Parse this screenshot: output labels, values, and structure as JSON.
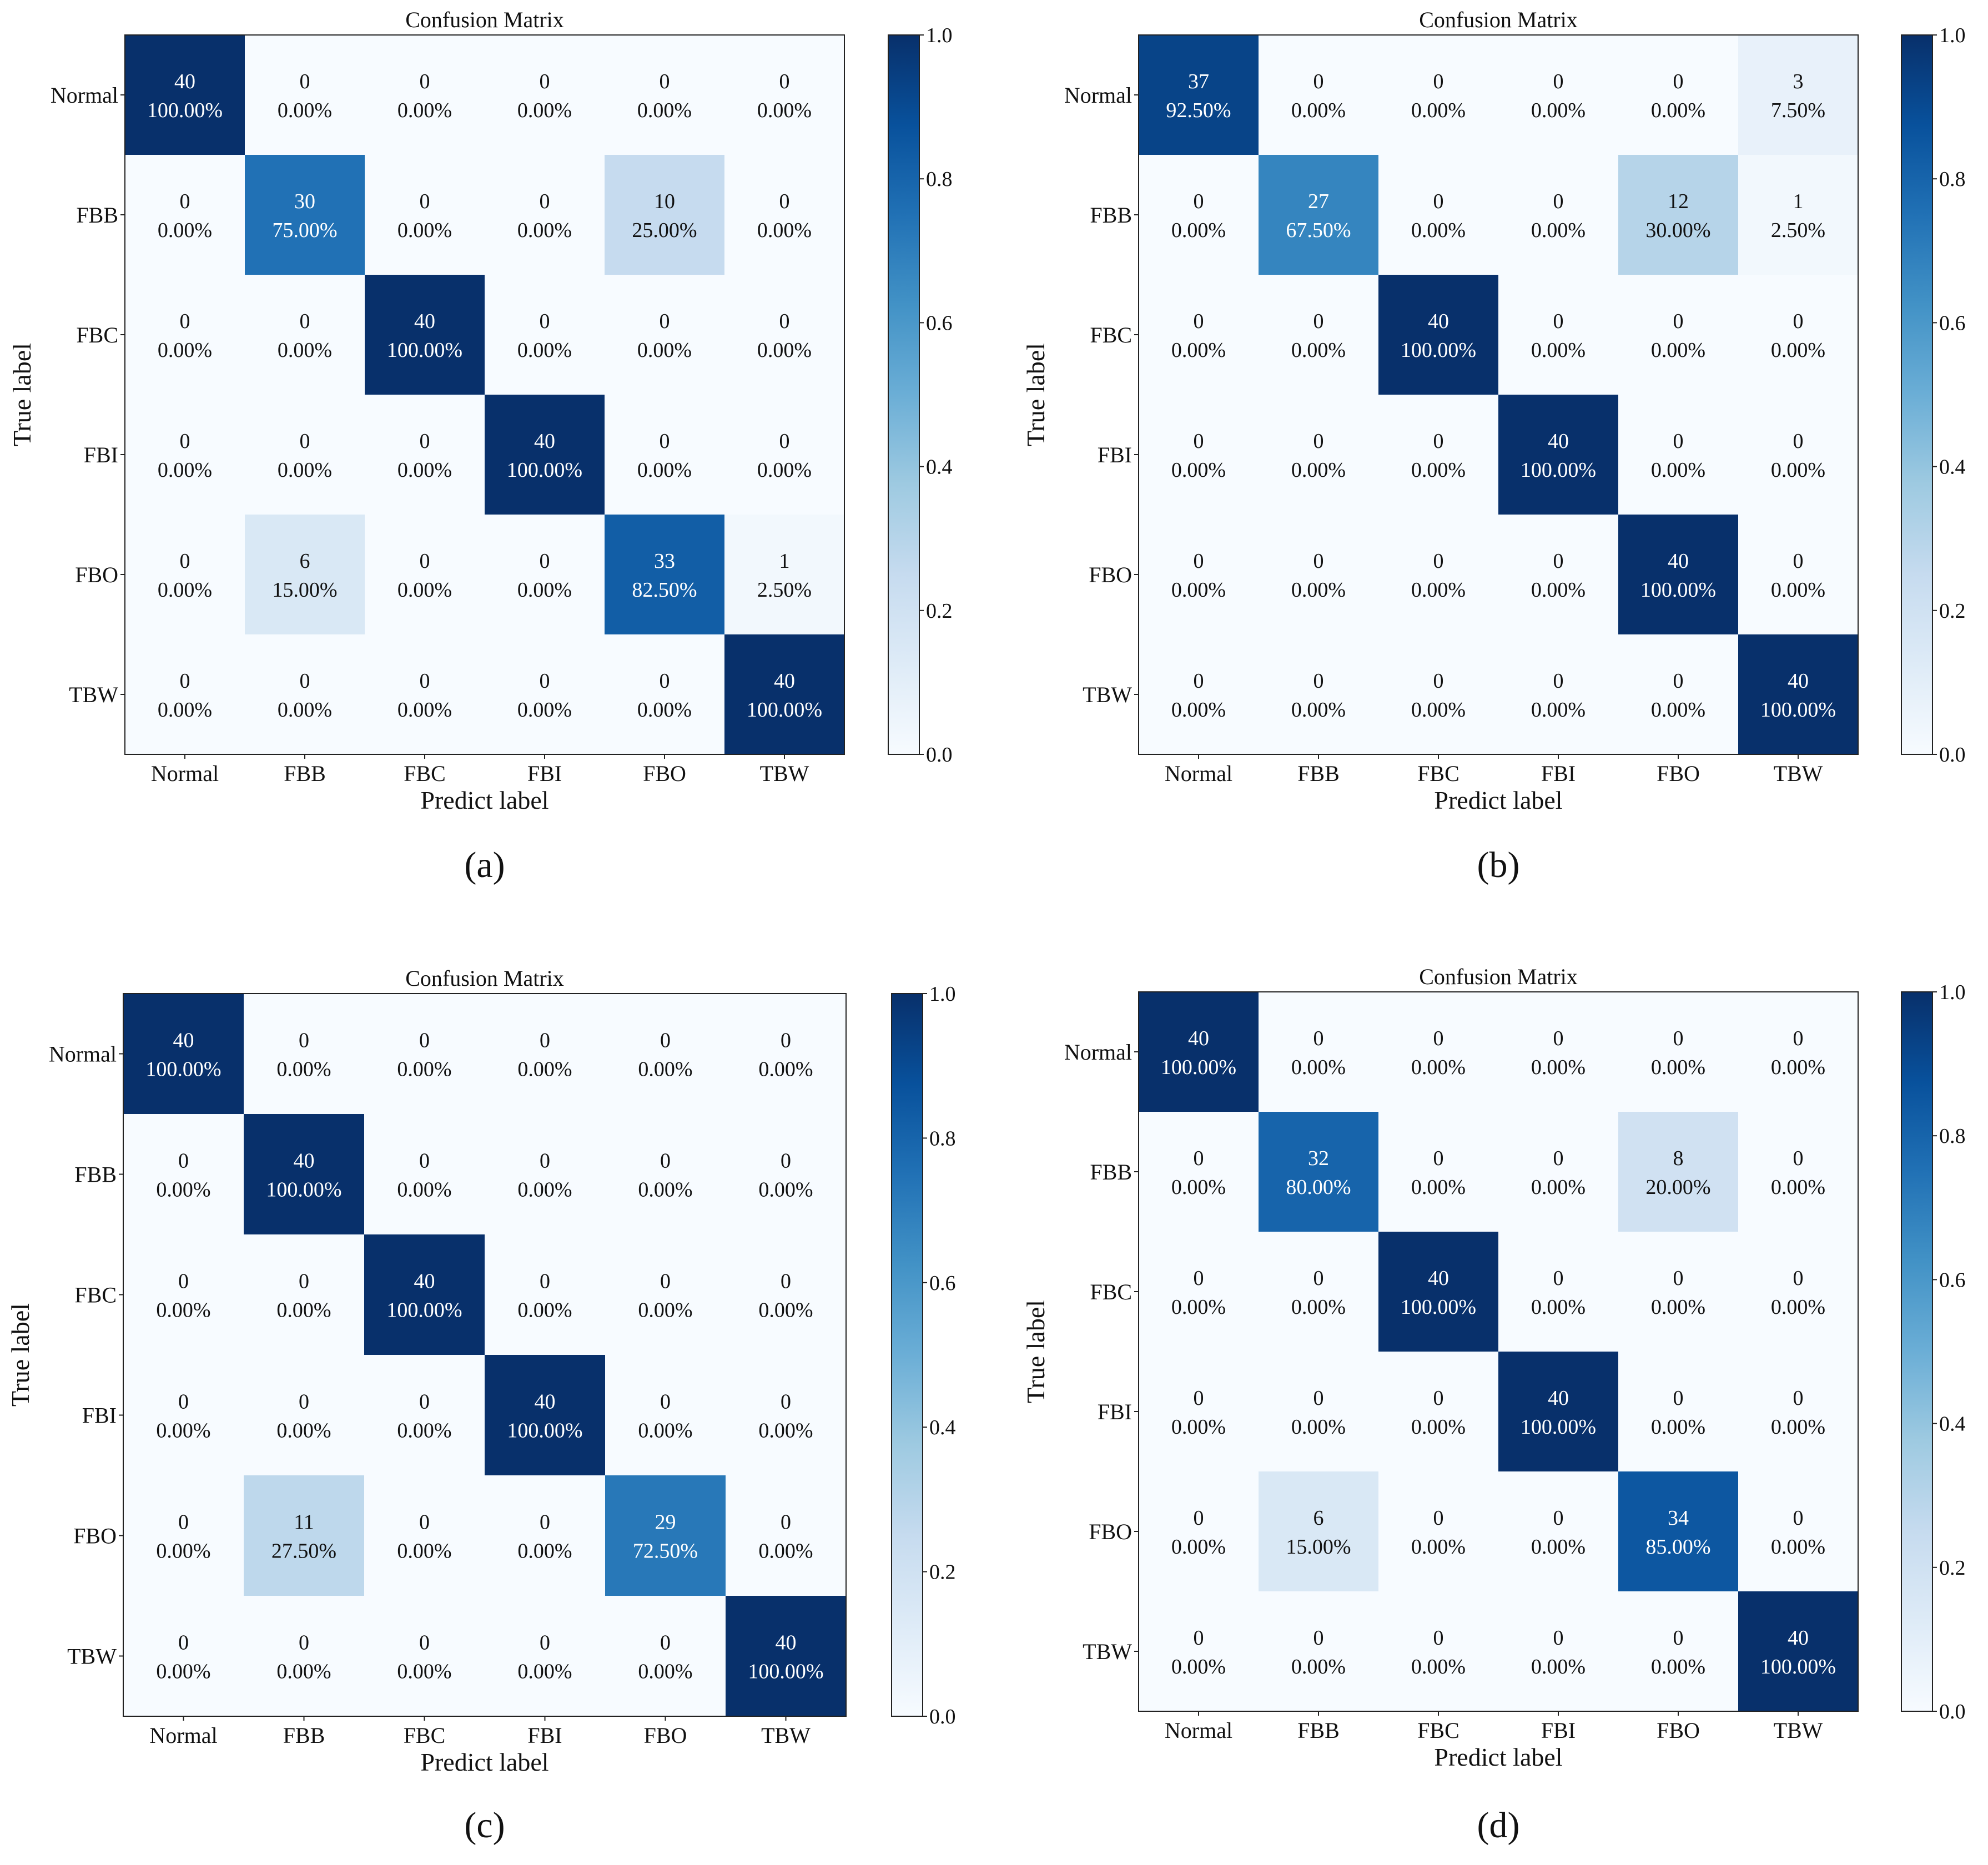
{
  "chart_data": [
    {
      "type": "heatmap",
      "panel_label": "(a)",
      "title": "Confusion Matrix",
      "xlabel": "Predict label",
      "ylabel": "True label",
      "x_categories": [
        "Normal",
        "FBB",
        "FBC",
        "FBI",
        "FBO",
        "TBW"
      ],
      "y_categories": [
        "Normal",
        "FBB",
        "FBC",
        "FBI",
        "FBO",
        "TBW"
      ],
      "counts": [
        [
          40,
          0,
          0,
          0,
          0,
          0
        ],
        [
          0,
          30,
          0,
          0,
          10,
          0
        ],
        [
          0,
          0,
          40,
          0,
          0,
          0
        ],
        [
          0,
          0,
          0,
          40,
          0,
          0
        ],
        [
          0,
          6,
          0,
          0,
          33,
          1
        ],
        [
          0,
          0,
          0,
          0,
          0,
          40
        ]
      ],
      "percents": [
        [
          "100.00%",
          "0.00%",
          "0.00%",
          "0.00%",
          "0.00%",
          "0.00%"
        ],
        [
          "0.00%",
          "75.00%",
          "0.00%",
          "0.00%",
          "25.00%",
          "0.00%"
        ],
        [
          "0.00%",
          "0.00%",
          "100.00%",
          "0.00%",
          "0.00%",
          "0.00%"
        ],
        [
          "0.00%",
          "0.00%",
          "0.00%",
          "100.00%",
          "0.00%",
          "0.00%"
        ],
        [
          "0.00%",
          "15.00%",
          "0.00%",
          "0.00%",
          "82.50%",
          "2.50%"
        ],
        [
          "0.00%",
          "0.00%",
          "0.00%",
          "0.00%",
          "0.00%",
          "100.00%"
        ]
      ],
      "colorbar": {
        "min": 0.0,
        "max": 1.0,
        "ticks": [
          "0.0",
          "0.2",
          "0.4",
          "0.6",
          "0.8",
          "1.0"
        ],
        "colormap": "Blues"
      }
    },
    {
      "type": "heatmap",
      "panel_label": "(b)",
      "title": "Confusion Matrix",
      "xlabel": "Predict label",
      "ylabel": "True label",
      "x_categories": [
        "Normal",
        "FBB",
        "FBC",
        "FBI",
        "FBO",
        "TBW"
      ],
      "y_categories": [
        "Normal",
        "FBB",
        "FBC",
        "FBI",
        "FBO",
        "TBW"
      ],
      "counts": [
        [
          37,
          0,
          0,
          0,
          0,
          3
        ],
        [
          0,
          27,
          0,
          0,
          12,
          1
        ],
        [
          0,
          0,
          40,
          0,
          0,
          0
        ],
        [
          0,
          0,
          0,
          40,
          0,
          0
        ],
        [
          0,
          0,
          0,
          0,
          40,
          0
        ],
        [
          0,
          0,
          0,
          0,
          0,
          40
        ]
      ],
      "percents": [
        [
          "92.50%",
          "0.00%",
          "0.00%",
          "0.00%",
          "0.00%",
          "7.50%"
        ],
        [
          "0.00%",
          "67.50%",
          "0.00%",
          "0.00%",
          "30.00%",
          "2.50%"
        ],
        [
          "0.00%",
          "0.00%",
          "100.00%",
          "0.00%",
          "0.00%",
          "0.00%"
        ],
        [
          "0.00%",
          "0.00%",
          "0.00%",
          "100.00%",
          "0.00%",
          "0.00%"
        ],
        [
          "0.00%",
          "0.00%",
          "0.00%",
          "0.00%",
          "100.00%",
          "0.00%"
        ],
        [
          "0.00%",
          "0.00%",
          "0.00%",
          "0.00%",
          "0.00%",
          "100.00%"
        ]
      ],
      "colorbar": {
        "min": 0.0,
        "max": 1.0,
        "ticks": [
          "0.0",
          "0.2",
          "0.4",
          "0.6",
          "0.8",
          "1.0"
        ],
        "colormap": "Blues"
      }
    },
    {
      "type": "heatmap",
      "panel_label": "(c)",
      "title": "Confusion Matrix",
      "xlabel": "Predict label",
      "ylabel": "True label",
      "x_categories": [
        "Normal",
        "FBB",
        "FBC",
        "FBI",
        "FBO",
        "TBW"
      ],
      "y_categories": [
        "Normal",
        "FBB",
        "FBC",
        "FBI",
        "FBO",
        "TBW"
      ],
      "counts": [
        [
          40,
          0,
          0,
          0,
          0,
          0
        ],
        [
          0,
          40,
          0,
          0,
          0,
          0
        ],
        [
          0,
          0,
          40,
          0,
          0,
          0
        ],
        [
          0,
          0,
          0,
          40,
          0,
          0
        ],
        [
          0,
          11,
          0,
          0,
          29,
          0
        ],
        [
          0,
          0,
          0,
          0,
          0,
          40
        ]
      ],
      "percents": [
        [
          "100.00%",
          "0.00%",
          "0.00%",
          "0.00%",
          "0.00%",
          "0.00%"
        ],
        [
          "0.00%",
          "100.00%",
          "0.00%",
          "0.00%",
          "0.00%",
          "0.00%"
        ],
        [
          "0.00%",
          "0.00%",
          "100.00%",
          "0.00%",
          "0.00%",
          "0.00%"
        ],
        [
          "0.00%",
          "0.00%",
          "0.00%",
          "100.00%",
          "0.00%",
          "0.00%"
        ],
        [
          "0.00%",
          "27.50%",
          "0.00%",
          "0.00%",
          "72.50%",
          "0.00%"
        ],
        [
          "0.00%",
          "0.00%",
          "0.00%",
          "0.00%",
          "0.00%",
          "100.00%"
        ]
      ],
      "colorbar": {
        "min": 0.0,
        "max": 1.0,
        "ticks": [
          "0.0",
          "0.2",
          "0.4",
          "0.6",
          "0.8",
          "1.0"
        ],
        "colormap": "Blues"
      }
    },
    {
      "type": "heatmap",
      "panel_label": "(d)",
      "title": "Confusion Matrix",
      "xlabel": "Predict label",
      "ylabel": "True label",
      "x_categories": [
        "Normal",
        "FBB",
        "FBC",
        "FBI",
        "FBO",
        "TBW"
      ],
      "y_categories": [
        "Normal",
        "FBB",
        "FBC",
        "FBI",
        "FBO",
        "TBW"
      ],
      "counts": [
        [
          40,
          0,
          0,
          0,
          0,
          0
        ],
        [
          0,
          32,
          0,
          0,
          8,
          0
        ],
        [
          0,
          0,
          40,
          0,
          0,
          0
        ],
        [
          0,
          0,
          0,
          40,
          0,
          0
        ],
        [
          0,
          6,
          0,
          0,
          34,
          0
        ],
        [
          0,
          0,
          0,
          0,
          0,
          40
        ]
      ],
      "percents": [
        [
          "100.00%",
          "0.00%",
          "0.00%",
          "0.00%",
          "0.00%",
          "0.00%"
        ],
        [
          "0.00%",
          "80.00%",
          "0.00%",
          "0.00%",
          "20.00%",
          "0.00%"
        ],
        [
          "0.00%",
          "0.00%",
          "100.00%",
          "0.00%",
          "0.00%",
          "0.00%"
        ],
        [
          "0.00%",
          "0.00%",
          "0.00%",
          "100.00%",
          "0.00%",
          "0.00%"
        ],
        [
          "0.00%",
          "15.00%",
          "0.00%",
          "0.00%",
          "85.00%",
          "0.00%"
        ],
        [
          "0.00%",
          "0.00%",
          "0.00%",
          "0.00%",
          "0.00%",
          "100.00%"
        ]
      ],
      "colorbar": {
        "min": 0.0,
        "max": 1.0,
        "ticks": [
          "0.0",
          "0.2",
          "0.4",
          "0.6",
          "0.8",
          "1.0"
        ],
        "colormap": "Blues"
      }
    }
  ]
}
